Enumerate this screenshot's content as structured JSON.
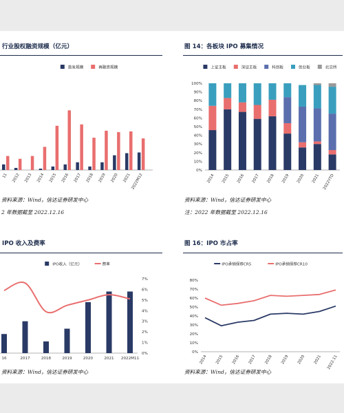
{
  "panels": {
    "p1": {
      "title": "行业股权融资规模（亿元）",
      "source": "资料来源：Wind，信达证券研发中心",
      "note": "2 年数据截至 2022.12.16"
    },
    "p2": {
      "title": "图 14：各板块 IPO 募集情况",
      "source": "资料来源：Wind，信达证券研发中心",
      "note": "注：2022 年数据截至 2022.12.16"
    },
    "p3": {
      "title": "IPO 收入及费率",
      "source": "资料来源：Wind，信达证券研发中心",
      "note": ""
    },
    "p4": {
      "title": "图 16：IPO 市占率",
      "source": "资料来源：Wind，信达证券研发中心",
      "note": ""
    }
  },
  "chart_data": [
    {
      "id": "equity_financing",
      "type": "bar",
      "title": "行业股权融资规模（亿元）",
      "categories": [
        "2011",
        "2012",
        "2013",
        "2014",
        "2015",
        "2016",
        "2017",
        "2018",
        "2019",
        "2020",
        "2021",
        "2022M12"
      ],
      "categories_visible": [
        "11",
        "2012",
        "2013",
        "2014",
        "2015",
        "2016",
        "2017",
        "2018",
        "2019",
        "2020",
        "2021",
        "2022M12"
      ],
      "series": [
        {
          "name": "首发规模",
          "color": "#2a3a66",
          "values": [
            0.8,
            0.3,
            0,
            0.2,
            0.5,
            0.8,
            1.1,
            0.5,
            1.1,
            2.1,
            2.4,
            2.5
          ]
        },
        {
          "name": "再融资规模",
          "color": "#e96e6e",
          "values": [
            2.0,
            1.6,
            2.0,
            3.3,
            6.3,
            8.5,
            6.5,
            4.6,
            5.6,
            5.4,
            5.5,
            4.5
          ]
        }
      ],
      "ylim": [
        0,
        10
      ],
      "legend": "top-center"
    },
    {
      "id": "ipo_by_board",
      "type": "bar",
      "stacked": true,
      "title": "各板块 IPO 募集情况",
      "categories": [
        "2014",
        "2015",
        "2016",
        "2017",
        "2018",
        "2019",
        "2020",
        "2021",
        "2022YTD"
      ],
      "series": [
        {
          "name": "上证主板",
          "color": "#2a3a66",
          "values": [
            46,
            70,
            67,
            59,
            62,
            42,
            26,
            30,
            18
          ]
        },
        {
          "name": "深证主板",
          "color": "#e96e6e",
          "values": [
            28,
            13,
            11,
            16,
            19,
            12,
            6,
            3,
            5
          ]
        },
        {
          "name": "科创板",
          "color": "#5b6fae",
          "values": [
            0,
            0,
            0,
            0,
            0,
            30,
            41,
            38,
            42
          ]
        },
        {
          "name": "创业板",
          "color": "#3a9fbe",
          "values": [
            26,
            17,
            22,
            25,
            19,
            16,
            25,
            27,
            31
          ]
        },
        {
          "name": "北交所",
          "color": "#9a9a9a",
          "values": [
            0,
            0,
            0,
            0,
            0,
            0,
            0,
            2,
            4
          ]
        }
      ],
      "yticks": [
        "0%",
        "10%",
        "20%",
        "30%",
        "40%",
        "50%",
        "60%",
        "70%",
        "80%",
        "90%",
        "100%"
      ],
      "ylim": [
        0,
        100
      ],
      "legend": "top-center"
    },
    {
      "id": "ipo_revenue_fee",
      "type": "bar",
      "title": "IPO 收入及费率",
      "categories": [
        "2016",
        "2017",
        "2018",
        "2019",
        "2020",
        "2021",
        "2022M11"
      ],
      "categories_visible": [
        "16",
        "2017",
        "2018",
        "2019",
        "2020",
        "2021",
        "2022M11"
      ],
      "series": [
        {
          "name": "IPO收入（亿元）",
          "type": "bar",
          "axis": "left",
          "color": "#2a3a66",
          "values": [
            1.8,
            3.0,
            1.1,
            2.3,
            4.8,
            5.8,
            5.8
          ]
        },
        {
          "name": "费率",
          "type": "line",
          "axis": "right",
          "color": "#e96e6e",
          "values": [
            5.9,
            6.6,
            3.9,
            4.5,
            5.0,
            5.5,
            5.1
          ]
        }
      ],
      "ylim_right": [
        0,
        7
      ],
      "yticks_right": [
        "0%",
        "1%",
        "2%",
        "3%",
        "4%",
        "5%",
        "6%",
        "7%"
      ],
      "legend": "top-center"
    },
    {
      "id": "ipo_market_share",
      "type": "line",
      "title": "IPO 市占率",
      "categories": [
        "2014",
        "2015",
        "2016",
        "2017",
        "2018",
        "2019",
        "2020",
        "2021",
        "2022.11"
      ],
      "series": [
        {
          "name": "IPO承销保荐CR5",
          "color": "#2a3a66",
          "values": [
            38,
            29,
            33,
            35,
            42,
            43,
            42,
            45,
            51
          ]
        },
        {
          "name": "IPO承销保荐CR10",
          "color": "#e96e6e",
          "values": [
            60,
            52,
            54,
            57,
            63,
            62,
            63,
            64,
            69
          ]
        }
      ],
      "ylim": [
        0,
        80
      ],
      "yticks": [
        "0%",
        "10%",
        "20%",
        "30%",
        "40%",
        "50%",
        "60%",
        "70%",
        "80%"
      ],
      "legend": "top-center"
    }
  ]
}
